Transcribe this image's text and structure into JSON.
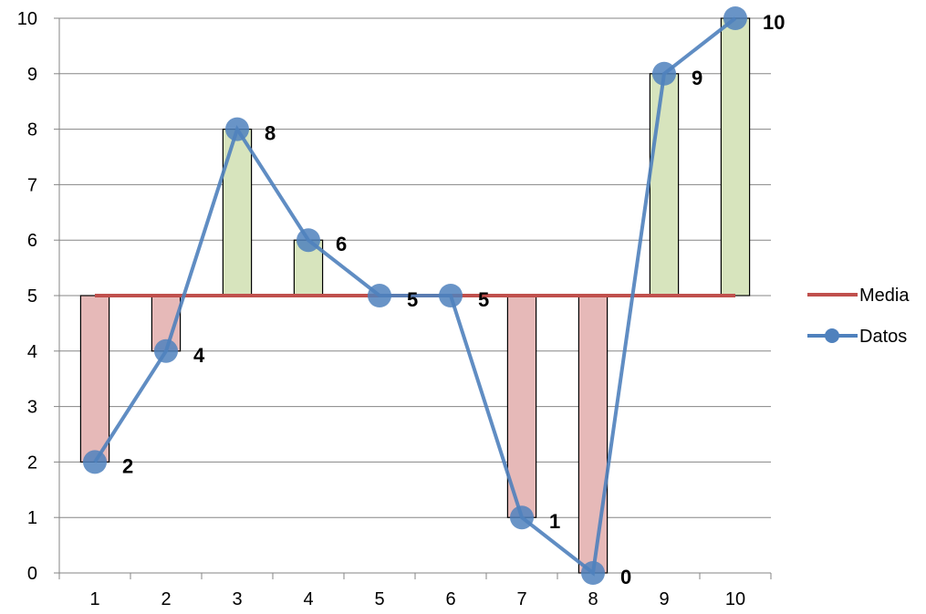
{
  "chart_data": {
    "type": "line",
    "categories": [
      "1",
      "2",
      "3",
      "4",
      "5",
      "6",
      "7",
      "8",
      "9",
      "10"
    ],
    "series": [
      {
        "name": "Media",
        "values": [
          5,
          5,
          5,
          5,
          5,
          5,
          5,
          5,
          5,
          5
        ],
        "color": "#C0504D"
      },
      {
        "name": "Datos",
        "values": [
          2,
          4,
          8,
          6,
          5,
          5,
          1,
          0,
          9,
          10
        ],
        "color": "#4F81BD"
      }
    ],
    "deviation_bars": {
      "above_color": "#D7E4BD",
      "below_color": "#E6B9B8"
    },
    "data_labels": [
      "2",
      "4",
      "8",
      "6",
      "5",
      "5",
      "1",
      "0",
      "9",
      "10"
    ],
    "y_ticks": [
      "0",
      "1",
      "2",
      "3",
      "4",
      "5",
      "6",
      "7",
      "8",
      "9",
      "10"
    ],
    "ylim": [
      0,
      10
    ],
    "grid": "horizontal",
    "legend_placement": "right",
    "gridline_color": "#868686"
  }
}
